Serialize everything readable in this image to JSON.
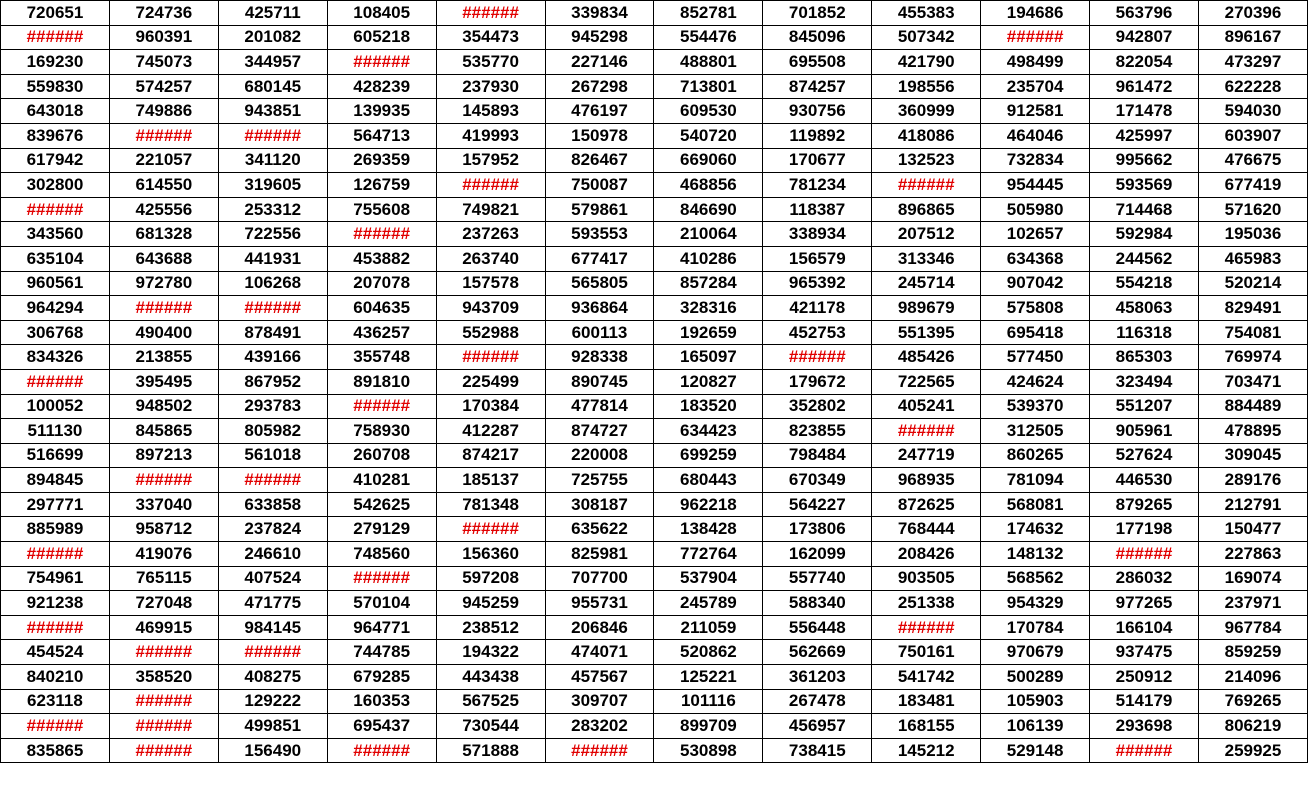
{
  "error_color": "#e10000",
  "text_color": "#000000",
  "rows": [
    [
      "720651",
      "724736",
      "425711",
      "108405",
      "######",
      "339834",
      "852781",
      "701852",
      "455383",
      "194686",
      "563796",
      "270396"
    ],
    [
      "######",
      "960391",
      "201082",
      "605218",
      "354473",
      "945298",
      "554476",
      "845096",
      "507342",
      "######",
      "942807",
      "896167"
    ],
    [
      "169230",
      "745073",
      "344957",
      "######",
      "535770",
      "227146",
      "488801",
      "695508",
      "421790",
      "498499",
      "822054",
      "473297"
    ],
    [
      "559830",
      "574257",
      "680145",
      "428239",
      "237930",
      "267298",
      "713801",
      "874257",
      "198556",
      "235704",
      "961472",
      "622228"
    ],
    [
      "643018",
      "749886",
      "943851",
      "139935",
      "145893",
      "476197",
      "609530",
      "930756",
      "360999",
      "912581",
      "171478",
      "594030"
    ],
    [
      "839676",
      "######",
      "######",
      "564713",
      "419993",
      "150978",
      "540720",
      "119892",
      "418086",
      "464046",
      "425997",
      "603907"
    ],
    [
      "617942",
      "221057",
      "341120",
      "269359",
      "157952",
      "826467",
      "669060",
      "170677",
      "132523",
      "732834",
      "995662",
      "476675"
    ],
    [
      "302800",
      "614550",
      "319605",
      "126759",
      "######",
      "750087",
      "468856",
      "781234",
      "######",
      "954445",
      "593569",
      "677419"
    ],
    [
      "######",
      "425556",
      "253312",
      "755608",
      "749821",
      "579861",
      "846690",
      "118387",
      "896865",
      "505980",
      "714468",
      "571620"
    ],
    [
      "343560",
      "681328",
      "722556",
      "######",
      "237263",
      "593553",
      "210064",
      "338934",
      "207512",
      "102657",
      "592984",
      "195036"
    ],
    [
      "635104",
      "643688",
      "441931",
      "453882",
      "263740",
      "677417",
      "410286",
      "156579",
      "313346",
      "634368",
      "244562",
      "465983"
    ],
    [
      "960561",
      "972780",
      "106268",
      "207078",
      "157578",
      "565805",
      "857284",
      "965392",
      "245714",
      "907042",
      "554218",
      "520214"
    ],
    [
      "964294",
      "######",
      "######",
      "604635",
      "943709",
      "936864",
      "328316",
      "421178",
      "989679",
      "575808",
      "458063",
      "829491"
    ],
    [
      "306768",
      "490400",
      "878491",
      "436257",
      "552988",
      "600113",
      "192659",
      "452753",
      "551395",
      "695418",
      "116318",
      "754081"
    ],
    [
      "834326",
      "213855",
      "439166",
      "355748",
      "######",
      "928338",
      "165097",
      "######",
      "485426",
      "577450",
      "865303",
      "769974"
    ],
    [
      "######",
      "395495",
      "867952",
      "891810",
      "225499",
      "890745",
      "120827",
      "179672",
      "722565",
      "424624",
      "323494",
      "703471"
    ],
    [
      "100052",
      "948502",
      "293783",
      "######",
      "170384",
      "477814",
      "183520",
      "352802",
      "405241",
      "539370",
      "551207",
      "884489"
    ],
    [
      "511130",
      "845865",
      "805982",
      "758930",
      "412287",
      "874727",
      "634423",
      "823855",
      "######",
      "312505",
      "905961",
      "478895"
    ],
    [
      "516699",
      "897213",
      "561018",
      "260708",
      "874217",
      "220008",
      "699259",
      "798484",
      "247719",
      "860265",
      "527624",
      "309045"
    ],
    [
      "894845",
      "######",
      "######",
      "410281",
      "185137",
      "725755",
      "680443",
      "670349",
      "968935",
      "781094",
      "446530",
      "289176"
    ],
    [
      "297771",
      "337040",
      "633858",
      "542625",
      "781348",
      "308187",
      "962218",
      "564227",
      "872625",
      "568081",
      "879265",
      "212791"
    ],
    [
      "885989",
      "958712",
      "237824",
      "279129",
      "######",
      "635622",
      "138428",
      "173806",
      "768444",
      "174632",
      "177198",
      "150477"
    ],
    [
      "######",
      "419076",
      "246610",
      "748560",
      "156360",
      "825981",
      "772764",
      "162099",
      "208426",
      "148132",
      "######",
      "227863"
    ],
    [
      "754961",
      "765115",
      "407524",
      "######",
      "597208",
      "707700",
      "537904",
      "557740",
      "903505",
      "568562",
      "286032",
      "169074"
    ],
    [
      "921238",
      "727048",
      "471775",
      "570104",
      "945259",
      "955731",
      "245789",
      "588340",
      "251338",
      "954329",
      "977265",
      "237971"
    ],
    [
      "######",
      "469915",
      "984145",
      "964771",
      "238512",
      "206846",
      "211059",
      "556448",
      "######",
      "170784",
      "166104",
      "967784"
    ],
    [
      "454524",
      "######",
      "######",
      "744785",
      "194322",
      "474071",
      "520862",
      "562669",
      "750161",
      "970679",
      "937475",
      "859259"
    ],
    [
      "840210",
      "358520",
      "408275",
      "679285",
      "443438",
      "457567",
      "125221",
      "361203",
      "541742",
      "500289",
      "250912",
      "214096"
    ],
    [
      "623118",
      "######",
      "129222",
      "160353",
      "567525",
      "309707",
      "101116",
      "267478",
      "183481",
      "105903",
      "514179",
      "769265"
    ],
    [
      "######",
      "######",
      "499851",
      "695437",
      "730544",
      "283202",
      "899709",
      "456957",
      "168155",
      "106139",
      "293698",
      "806219"
    ],
    [
      "835865",
      "######",
      "156490",
      "######",
      "571888",
      "######",
      "530898",
      "738415",
      "145212",
      "529148",
      "######",
      "259925"
    ]
  ]
}
